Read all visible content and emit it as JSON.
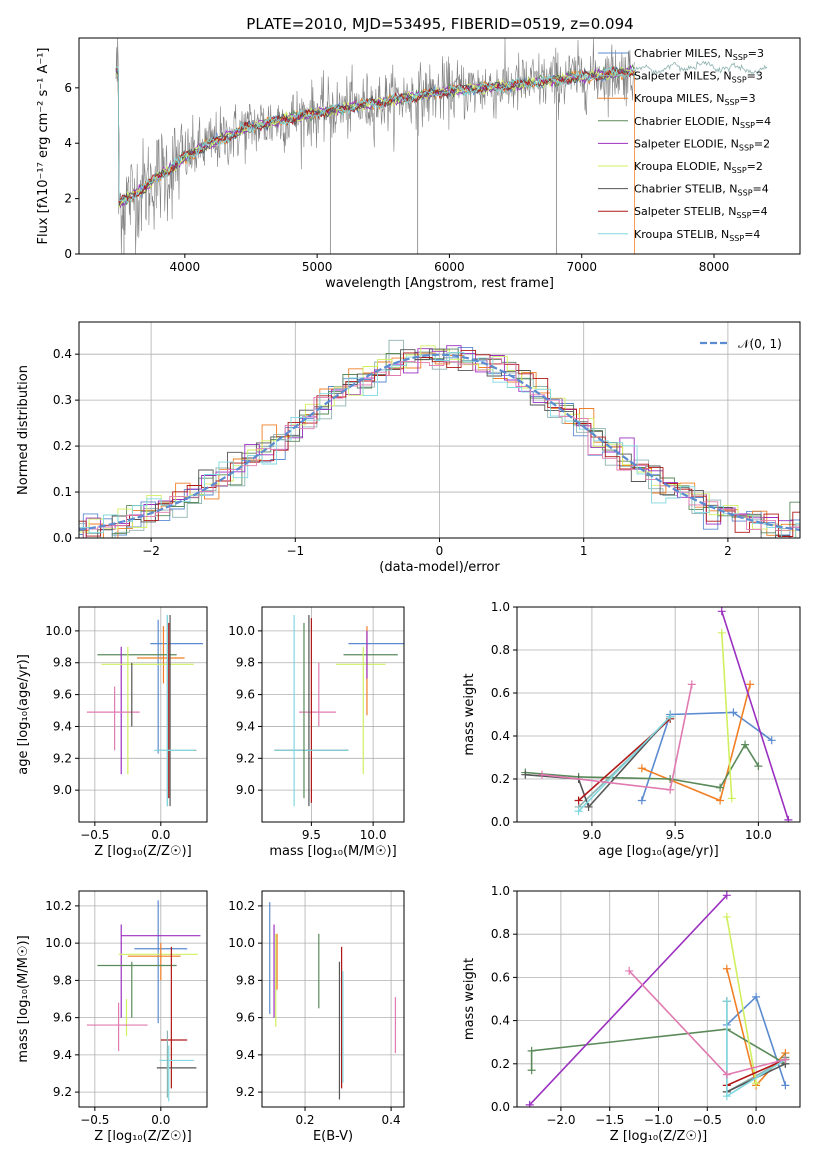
{
  "figure": {
    "title": "PLATE=2010, MJD=53495, FIBERID=0519, z=0.094"
  },
  "colors": {
    "data": "#808080",
    "Chabrier MILES": "#5b8bd0",
    "Salpeter MILES": "#8fb3b0",
    "Kroupa MILES": "#f07f25",
    "Chabrier ELODIE": "#5a8a5a",
    "Salpeter ELODIE": "#9b30c0",
    "Kroupa ELODIE": "#d0f060",
    "Chabrier STELIB": "#555555",
    "Salpeter STELIB": "#b01818",
    "Kroupa STELIB": "#80d8e0",
    "pink": "#e07ab0",
    "normal": "#5b8bd0"
  },
  "chart_data": [
    {
      "id": "spectrum",
      "type": "line",
      "xlabel": "wavelength [Angstrom, rest frame]",
      "ylabel": "Flux [fλ10⁻¹⁷ erg cm⁻² s⁻¹ A⁻¹]",
      "xlim": [
        3200,
        8650
      ],
      "ylim": [
        0,
        7.8
      ],
      "xticks": [
        4000,
        5000,
        6000,
        7000,
        8000
      ],
      "yticks": [
        0,
        2,
        4,
        6
      ],
      "grid": false,
      "legend_position": "right",
      "legend": [
        {
          "label": "Chabrier MILES, N",
          "sub": "SSP",
          "sup": "=3",
          "color": "#5b8bd0"
        },
        {
          "label": "Salpeter MILES, N",
          "sub": "SSP",
          "sup": "=3",
          "color": "#8fb3b0"
        },
        {
          "label": "Kroupa MILES, N",
          "sub": "SSP",
          "sup": "=3",
          "color": "#f07f25"
        },
        {
          "label": "Chabrier ELODIE, N",
          "sub": "SSP",
          "sup": "=4",
          "color": "#5a8a5a"
        },
        {
          "label": "Salpeter ELODIE, N",
          "sub": "SSP",
          "sup": "=2",
          "color": "#9b30c0"
        },
        {
          "label": "Kroupa ELODIE, N",
          "sub": "SSP",
          "sup": "=2",
          "color": "#d0f060"
        },
        {
          "label": "Chabrier STELIB, N",
          "sub": "SSP",
          "sup": "=4",
          "color": "#555555"
        },
        {
          "label": "Salpeter STELIB, N",
          "sub": "SSP",
          "sup": "=4",
          "color": "#b01818"
        },
        {
          "label": "Kroupa STELIB, N",
          "sub": "SSP",
          "sup": "=4",
          "color": "#80d8e0"
        }
      ],
      "continuum": [
        [
          3500,
          1.8
        ],
        [
          3600,
          2.1
        ],
        [
          3700,
          2.4
        ],
        [
          3800,
          2.8
        ],
        [
          3900,
          3.1
        ],
        [
          4000,
          3.5
        ],
        [
          4200,
          4.0
        ],
        [
          4500,
          4.6
        ],
        [
          5000,
          5.1
        ],
        [
          5500,
          5.5
        ],
        [
          6000,
          5.9
        ],
        [
          6500,
          6.1
        ],
        [
          7000,
          6.4
        ],
        [
          7400,
          6.6
        ],
        [
          7800,
          6.8
        ],
        [
          8200,
          6.7
        ],
        [
          8400,
          6.6
        ]
      ]
    },
    {
      "id": "residuals",
      "type": "histogram",
      "xlabel": "(data-model)/error",
      "ylabel": "Normed distribution",
      "xlim": [
        -2.5,
        2.5
      ],
      "ylim": [
        0,
        0.47
      ],
      "xticks": [
        -2,
        -1,
        0,
        1,
        2
      ],
      "yticks": [
        0.0,
        0.1,
        0.2,
        0.3,
        0.4
      ],
      "grid": true,
      "legend_position": "top-right",
      "reference_label": "𝒩(0, 1)",
      "bin_width": 0.1
    },
    {
      "id": "age-vs-Z",
      "type": "errorbar",
      "xlabel": "Z [log₁₀(Z/Z☉)]",
      "ylabel": "age  [log₁₀(age/yr)]",
      "xlim": [
        -0.62,
        0.35
      ],
      "ylim": [
        8.8,
        10.15
      ],
      "xticks": [
        -0.5,
        0.0
      ],
      "yticks": [
        9.0,
        9.2,
        9.4,
        9.6,
        9.8,
        10.0
      ],
      "grid": true,
      "bars": [
        {
          "c": "Chabrier MILES",
          "x": 0.12,
          "xe": 0.2,
          "y": 9.92,
          "ye": 0.0
        },
        {
          "c": "Chabrier MILES",
          "x": -0.02,
          "xe": 0.0,
          "y": 9.65,
          "ye": 0.42
        },
        {
          "c": "Kroupa MILES",
          "x": 0.0,
          "xe": 0.18,
          "y": 9.83,
          "ye": 0.0
        },
        {
          "c": "Kroupa MILES",
          "x": 0.02,
          "xe": 0.0,
          "y": 9.85,
          "ye": 0.18
        },
        {
          "c": "Chabrier ELODIE",
          "x": -0.18,
          "xe": 0.3,
          "y": 9.85,
          "ye": 0.0
        },
        {
          "c": "Chabrier ELODIE",
          "x": 0.05,
          "xe": 0.0,
          "y": 9.5,
          "ye": 0.6
        },
        {
          "c": "Salpeter ELODIE",
          "x": -0.3,
          "xe": 0.0,
          "y": 9.5,
          "ye": 0.4
        },
        {
          "c": "Kroupa ELODIE",
          "x": -0.25,
          "xe": 0.0,
          "y": 9.5,
          "ye": 0.4
        },
        {
          "c": "Kroupa ELODIE",
          "x": -0.1,
          "xe": 0.35,
          "y": 9.79,
          "ye": 0.0
        },
        {
          "c": "pink",
          "x": -0.36,
          "xe": 0.2,
          "y": 9.49,
          "ye": 0.0
        },
        {
          "c": "pink",
          "x": -0.35,
          "xe": 0.0,
          "y": 9.45,
          "ye": 0.2
        },
        {
          "c": "Chabrier STELIB",
          "x": -0.22,
          "xe": 0.0,
          "y": 9.6,
          "ye": 0.2
        },
        {
          "c": "Chabrier STELIB",
          "x": 0.07,
          "xe": 0.0,
          "y": 9.5,
          "ye": 0.6
        },
        {
          "c": "Salpeter STELIB",
          "x": 0.06,
          "xe": 0.0,
          "y": 9.5,
          "ye": 0.55
        },
        {
          "c": "Salpeter MILES",
          "x": 0.12,
          "xe": 0.15,
          "y": 9.25,
          "ye": 0.0
        },
        {
          "c": "Kroupa STELIB",
          "x": 0.1,
          "xe": 0.15,
          "y": 9.25,
          "ye": 0.0
        },
        {
          "c": "Kroupa STELIB",
          "x": 0.05,
          "xe": 0.0,
          "y": 9.5,
          "ye": 0.6
        }
      ]
    },
    {
      "id": "age-vs-mass",
      "type": "errorbar",
      "xlabel": "mass [log₁₀(M/M☉)]",
      "ylabel": "",
      "xlim": [
        9.1,
        10.25
      ],
      "ylim": [
        8.8,
        10.15
      ],
      "xticks": [
        9.5,
        10.0
      ],
      "yticks": [
        9.0,
        9.2,
        9.4,
        9.6,
        9.8,
        10.0
      ],
      "grid": true,
      "bars": [
        {
          "c": "Chabrier MILES",
          "x": 10.05,
          "xe": 0.25,
          "y": 9.92,
          "ye": 0.0
        },
        {
          "c": "Kroupa MILES",
          "x": 9.95,
          "xe": 0.0,
          "y": 9.75,
          "ye": 0.28
        },
        {
          "c": "Chabrier ELODIE",
          "x": 9.98,
          "xe": 0.22,
          "y": 9.85,
          "ye": 0.0
        },
        {
          "c": "Kroupa ELODIE",
          "x": 9.92,
          "xe": 0.0,
          "y": 9.5,
          "ye": 0.4
        },
        {
          "c": "Kroupa ELODIE",
          "x": 9.9,
          "xe": 0.2,
          "y": 9.79,
          "ye": 0.0
        },
        {
          "c": "Salpeter ELODIE",
          "x": 9.95,
          "xe": 0.0,
          "y": 9.85,
          "ye": 0.15
        },
        {
          "c": "pink",
          "x": 9.55,
          "xe": 0.15,
          "y": 9.49,
          "ye": 0.0
        },
        {
          "c": "pink",
          "x": 9.56,
          "xe": 0.0,
          "y": 9.6,
          "ye": 0.2
        },
        {
          "c": "Chabrier STELIB",
          "x": 9.48,
          "xe": 0.0,
          "y": 9.5,
          "ye": 0.6
        },
        {
          "c": "Salpeter STELIB",
          "x": 9.5,
          "xe": 0.0,
          "y": 9.5,
          "ye": 0.58
        },
        {
          "c": "Salpeter STELIB",
          "x": 10.0,
          "xe": 0.0,
          "y": 9.25,
          "ye": 0.0
        },
        {
          "c": "Chabrier STELIB",
          "x": 9.5,
          "xe": 0.3,
          "y": 9.25,
          "ye": 0.0
        },
        {
          "c": "Kroupa STELIB",
          "x": 9.36,
          "xe": 0.0,
          "y": 9.5,
          "ye": 0.6
        },
        {
          "c": "Kroupa STELIB",
          "x": 9.5,
          "xe": 0.3,
          "y": 9.25,
          "ye": 0.0
        },
        {
          "c": "Chabrier ELODIE",
          "x": 9.44,
          "xe": 0.0,
          "y": 9.5,
          "ye": 0.55
        }
      ]
    },
    {
      "id": "weight-vs-age",
      "type": "line",
      "xlabel": "age  [log₁₀(age/yr)]",
      "ylabel": "mass weight",
      "xlim": [
        8.55,
        10.25
      ],
      "ylim": [
        0.0,
        1.0
      ],
      "xticks": [
        9.0,
        9.5,
        10.0
      ],
      "yticks": [
        0.0,
        0.2,
        0.4,
        0.6,
        0.8,
        1.0
      ],
      "grid": true,
      "series": [
        {
          "c": "Chabrier MILES",
          "x": [
            9.3,
            9.47,
            9.85,
            10.08
          ],
          "y": [
            0.1,
            0.5,
            0.51,
            0.38
          ]
        },
        {
          "c": "Salpeter MILES",
          "x": [
            8.92,
            9.47
          ],
          "y": [
            0.07,
            0.48
          ]
        },
        {
          "c": "Kroupa MILES",
          "x": [
            9.3,
            9.77,
            9.95
          ],
          "y": [
            0.25,
            0.1,
            0.64
          ]
        },
        {
          "c": "Chabrier ELODIE",
          "x": [
            8.6,
            8.92,
            9.47,
            9.77,
            9.92,
            10.0
          ],
          "y": [
            0.23,
            0.21,
            0.2,
            0.16,
            0.36,
            0.26
          ]
        },
        {
          "c": "Salpeter ELODIE",
          "x": [
            9.78,
            10.18
          ],
          "y": [
            0.98,
            0.01
          ]
        },
        {
          "c": "Kroupa ELODIE",
          "x": [
            9.78,
            9.84
          ],
          "y": [
            0.88,
            0.11
          ]
        },
        {
          "c": "Chabrier STELIB",
          "x": [
            8.6,
            8.92,
            8.98,
            9.47
          ],
          "y": [
            0.22,
            0.2,
            0.07,
            0.49
          ]
        },
        {
          "c": "Salpeter STELIB",
          "x": [
            8.92,
            9.47
          ],
          "y": [
            0.1,
            0.48
          ]
        },
        {
          "c": "Kroupa STELIB",
          "x": [
            8.92,
            9.47
          ],
          "y": [
            0.05,
            0.49
          ]
        },
        {
          "c": "pink",
          "x": [
            8.7,
            9.47,
            9.6
          ],
          "y": [
            0.22,
            0.15,
            0.64
          ]
        }
      ]
    },
    {
      "id": "mass-vs-Z",
      "type": "errorbar",
      "xlabel": "Z [log₁₀(Z/Z☉)]",
      "ylabel": "mass [log₁₀(M/M☉)]",
      "xlim": [
        -0.62,
        0.35
      ],
      "ylim": [
        9.12,
        10.28
      ],
      "xticks": [
        -0.5,
        0.0
      ],
      "yticks": [
        9.2,
        9.4,
        9.6,
        9.8,
        10.0,
        10.2
      ],
      "grid": true,
      "bars": [
        {
          "c": "Chabrier MILES",
          "x": -0.02,
          "xe": 0.0,
          "y": 9.9,
          "ye": 0.33
        },
        {
          "c": "Chabrier MILES",
          "x": 0.0,
          "xe": 0.2,
          "y": 9.97,
          "ye": 0.0
        },
        {
          "c": "Salpeter ELODIE",
          "x": 0.0,
          "xe": 0.3,
          "y": 10.04,
          "ye": 0.0
        },
        {
          "c": "Salpeter ELODIE",
          "x": -0.3,
          "xe": 0.0,
          "y": 9.85,
          "ye": 0.25
        },
        {
          "c": "Kroupa ELODIE",
          "x": -0.02,
          "xe": 0.3,
          "y": 9.94,
          "ye": 0.0
        },
        {
          "c": "Kroupa MILES",
          "x": -0.05,
          "xe": 0.2,
          "y": 9.93,
          "ye": 0.0
        },
        {
          "c": "Kroupa MILES",
          "x": 0.0,
          "xe": 0.0,
          "y": 9.9,
          "ye": 0.1
        },
        {
          "c": "Chabrier ELODIE",
          "x": -0.18,
          "xe": 0.3,
          "y": 9.88,
          "ye": 0.0
        },
        {
          "c": "Chabrier ELODIE",
          "x": -0.22,
          "xe": 0.0,
          "y": 9.75,
          "ye": 0.15
        },
        {
          "c": "Kroupa ELODIE",
          "x": -0.26,
          "xe": 0.0,
          "y": 9.6,
          "ye": 0.1
        },
        {
          "c": "pink",
          "x": -0.33,
          "xe": 0.23,
          "y": 9.56,
          "ye": 0.0
        },
        {
          "c": "pink",
          "x": -0.32,
          "xe": 0.0,
          "y": 9.55,
          "ye": 0.13
        },
        {
          "c": "Salpeter STELIB",
          "x": 0.08,
          "xe": 0.0,
          "y": 9.6,
          "ye": 0.38
        },
        {
          "c": "Salpeter STELIB",
          "x": 0.1,
          "xe": 0.1,
          "y": 9.48,
          "ye": 0.0
        },
        {
          "c": "Kroupa STELIB",
          "x": 0.12,
          "xe": 0.13,
          "y": 9.37,
          "ye": 0.0
        },
        {
          "c": "Chabrier STELIB",
          "x": 0.12,
          "xe": 0.15,
          "y": 9.33,
          "ye": 0.0
        },
        {
          "c": "Kroupa STELIB",
          "x": 0.06,
          "xe": 0.0,
          "y": 9.3,
          "ye": 0.15
        },
        {
          "c": "Salpeter MILES",
          "x": 0.05,
          "xe": 0.0,
          "y": 9.35,
          "ye": 0.18
        }
      ]
    },
    {
      "id": "mass-vs-EBV",
      "type": "errorbar",
      "xlabel": "E(B-V)",
      "ylabel": "",
      "xlim": [
        0.1,
        0.43
      ],
      "ylim": [
        9.12,
        10.28
      ],
      "xticks": [
        0.2,
        0.4
      ],
      "yticks": [
        9.2,
        9.4,
        9.6,
        9.8,
        10.0,
        10.2
      ],
      "grid": true,
      "bars": [
        {
          "c": "Chabrier MILES",
          "x": 0.118,
          "xe": 0.0,
          "y": 9.92,
          "ye": 0.3
        },
        {
          "c": "Salpeter ELODIE",
          "x": 0.128,
          "xe": 0.0,
          "y": 9.85,
          "ye": 0.25
        },
        {
          "c": "Kroupa ELODIE",
          "x": 0.132,
          "xe": 0.0,
          "y": 9.8,
          "ye": 0.25
        },
        {
          "c": "Kroupa MILES",
          "x": 0.135,
          "xe": 0.0,
          "y": 9.9,
          "ye": 0.15
        },
        {
          "c": "Chabrier ELODIE",
          "x": 0.232,
          "xe": 0.0,
          "y": 9.85,
          "ye": 0.2
        },
        {
          "c": "Chabrier STELIB",
          "x": 0.28,
          "xe": 0.0,
          "y": 9.53,
          "ye": 0.37
        },
        {
          "c": "Salpeter STELIB",
          "x": 0.285,
          "xe": 0.0,
          "y": 9.6,
          "ye": 0.38
        },
        {
          "c": "Kroupa STELIB",
          "x": 0.288,
          "xe": 0.0,
          "y": 9.55,
          "ye": 0.3
        },
        {
          "c": "pink",
          "x": 0.41,
          "xe": 0.0,
          "y": 9.56,
          "ye": 0.15
        }
      ]
    },
    {
      "id": "weight-vs-Z",
      "type": "line",
      "xlabel": "Z [log₁₀(Z/Z☉)]",
      "ylabel": "mass weight",
      "xlim": [
        -2.45,
        0.45
      ],
      "ylim": [
        0.0,
        1.0
      ],
      "xticks": [
        -2.0,
        -1.5,
        -1.0,
        -0.5,
        0.0
      ],
      "yticks": [
        0.0,
        0.2,
        0.4,
        0.6,
        0.8,
        1.0
      ],
      "grid": true,
      "series": [
        {
          "c": "Chabrier MILES",
          "x": [
            -0.3,
            0.0,
            0.3
          ],
          "y": [
            0.38,
            0.51,
            0.1
          ]
        },
        {
          "c": "Salpeter MILES",
          "x": [
            -0.3,
            0.3
          ],
          "y": [
            0.07,
            0.22
          ]
        },
        {
          "c": "Kroupa MILES",
          "x": [
            -0.3,
            0.0,
            0.3
          ],
          "y": [
            0.64,
            0.1,
            0.25
          ]
        },
        {
          "c": "Chabrier ELODIE",
          "x": [
            -2.3,
            -2.3,
            -0.3,
            0.3,
            0.3
          ],
          "y": [
            0.17,
            0.26,
            0.36,
            0.2,
            0.23
          ]
        },
        {
          "c": "Salpeter ELODIE",
          "x": [
            -2.32,
            -0.3
          ],
          "y": [
            0.01,
            0.98
          ]
        },
        {
          "c": "Kroupa ELODIE",
          "x": [
            -0.3,
            0.0
          ],
          "y": [
            0.88,
            0.11
          ]
        },
        {
          "c": "Chabrier STELIB",
          "x": [
            -0.3,
            -0.3,
            0.3
          ],
          "y": [
            0.49,
            0.07,
            0.2
          ]
        },
        {
          "c": "Salpeter STELIB",
          "x": [
            -0.3,
            0.3
          ],
          "y": [
            0.1,
            0.22
          ]
        },
        {
          "c": "Kroupa STELIB",
          "x": [
            -0.3,
            -0.3,
            0.3
          ],
          "y": [
            0.49,
            0.05,
            0.22
          ]
        },
        {
          "c": "pink",
          "x": [
            -1.3,
            -0.3,
            0.3
          ],
          "y": [
            0.63,
            0.15,
            0.22
          ]
        }
      ]
    }
  ]
}
